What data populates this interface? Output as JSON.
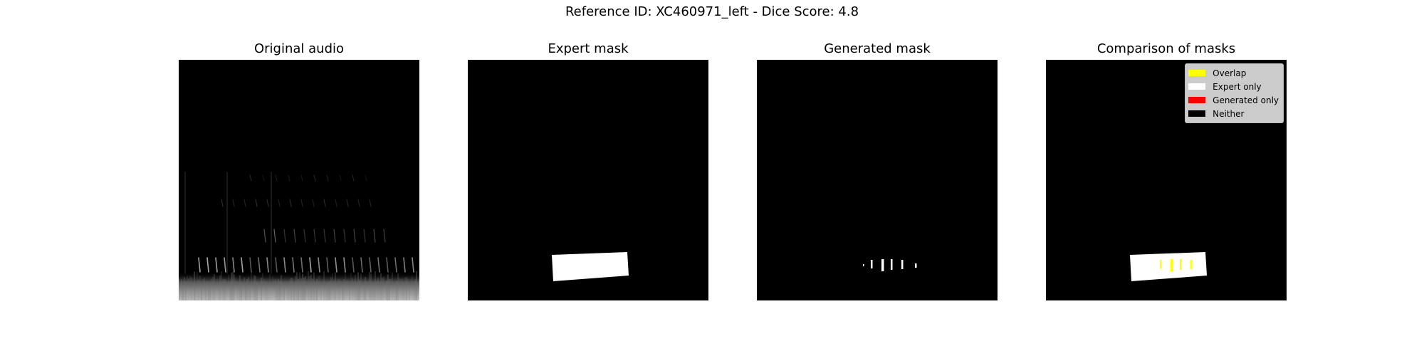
{
  "figure": {
    "title": "Reference ID: XC460971_left - Dice Score: 4.8"
  },
  "panels": {
    "original": {
      "title": "Original audio"
    },
    "expert": {
      "title": "Expert mask"
    },
    "generated": {
      "title": "Generated mask"
    },
    "comparison": {
      "title": "Comparison of masks"
    }
  },
  "legend": [
    {
      "label": "Overlap",
      "color": "#ffff00"
    },
    {
      "label": "Expert only",
      "color": "#ffffff"
    },
    {
      "label": "Generated only",
      "color": "#ff0000"
    },
    {
      "label": "Neither",
      "color": "#000000"
    }
  ]
}
